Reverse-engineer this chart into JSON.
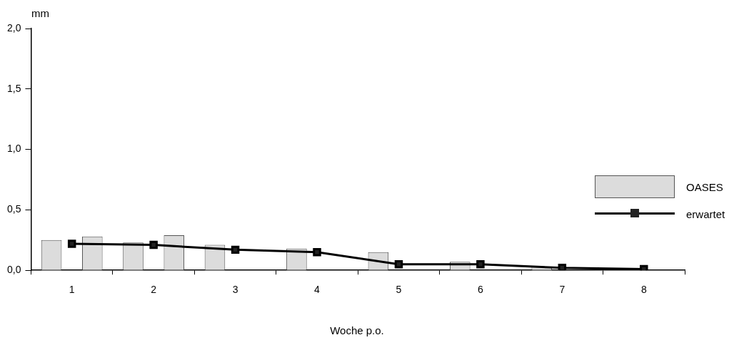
{
  "chart_data": {
    "type": "bar",
    "xlabel": "Woche p.o.",
    "ylabel": "mm",
    "categories": [
      "1",
      "2",
      "3",
      "4",
      "5",
      "6",
      "7",
      "8"
    ],
    "series": [
      {
        "name": "OASES",
        "color": "#dcdcdc",
        "values": [
          0.25,
          0.23,
          0.21,
          0.18,
          0.15,
          0.07,
          0.03,
          null
        ]
      },
      {
        "color": "#dcdcdc",
        "values": [
          0.28,
          0.29,
          null,
          null,
          null,
          null,
          null,
          null
        ]
      },
      {
        "name": "erwartet",
        "type": "line",
        "color": "#000000",
        "values": [
          0.22,
          0.21,
          0.17,
          0.15,
          0.05,
          0.05,
          0.02,
          0.01
        ]
      }
    ],
    "ylim": [
      0,
      2
    ],
    "yticks": [
      {
        "value": 0,
        "label": "0,0"
      },
      {
        "value": 0.5,
        "label": "0,5"
      },
      {
        "value": 1,
        "label": "1,0"
      },
      {
        "value": 1.5,
        "label": "1,5"
      },
      {
        "value": 2,
        "label": "2,0"
      }
    ],
    "grid": false,
    "legend": "right",
    "marker": "square",
    "line_style": "solid"
  }
}
